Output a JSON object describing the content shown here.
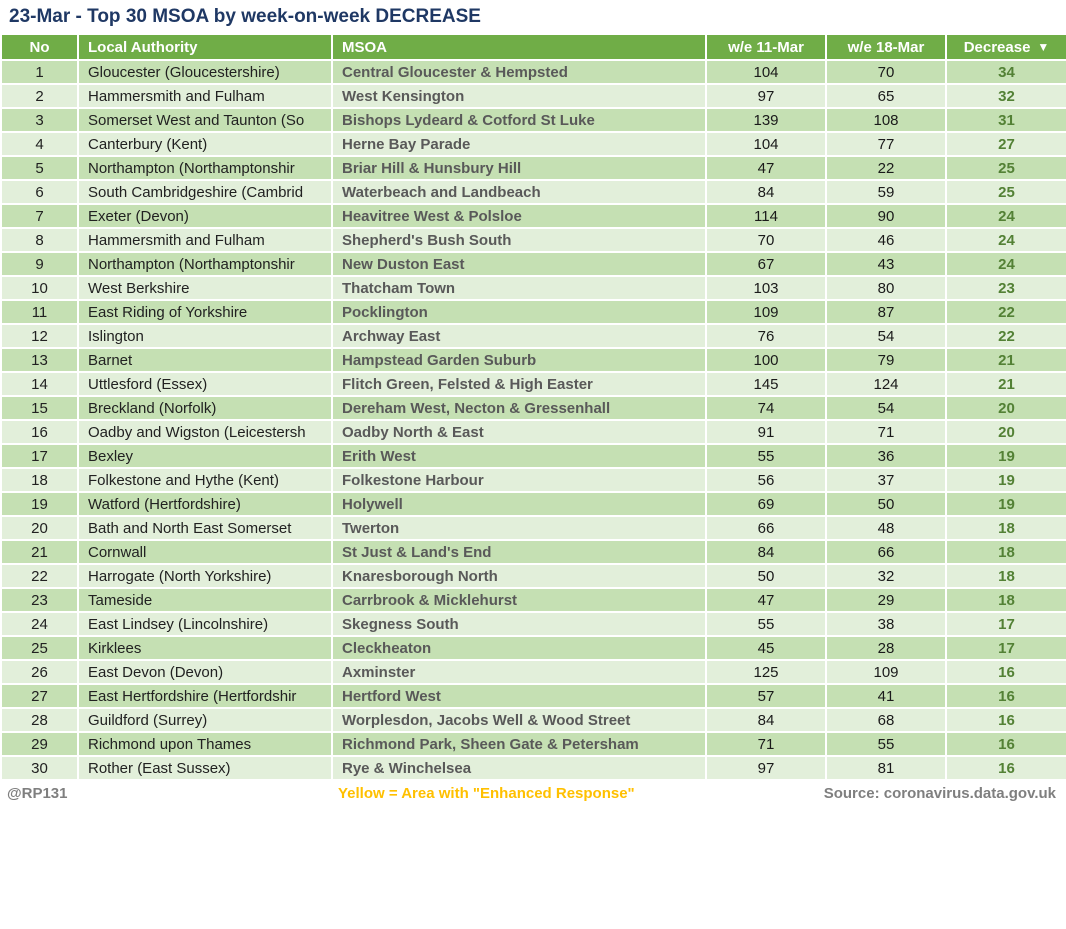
{
  "title": "23-Mar - Top 30 MSOA by week-on-week DECREASE",
  "chart_data": {
    "type": "table",
    "title": "23-Mar - Top 30 MSOA by week-on-week DECREASE",
    "columns": [
      "No",
      "Local Authority",
      "MSOA",
      "w/e 11-Mar",
      "w/e 18-Mar",
      "Decrease"
    ],
    "sort_indicator": "▼",
    "sorted_by": "Decrease",
    "sort_order": "descending",
    "rows": [
      {
        "no": 1,
        "la": "Gloucester (Gloucestershire)",
        "msoa": "Central Gloucester & Hempsted",
        "we11": 104,
        "we18": 70,
        "dec": 34
      },
      {
        "no": 2,
        "la": "Hammersmith and Fulham",
        "msoa": "West Kensington",
        "we11": 97,
        "we18": 65,
        "dec": 32
      },
      {
        "no": 3,
        "la": "Somerset West and Taunton (So",
        "msoa": "Bishops Lydeard & Cotford St Luke",
        "we11": 139,
        "we18": 108,
        "dec": 31
      },
      {
        "no": 4,
        "la": "Canterbury (Kent)",
        "msoa": "Herne Bay Parade",
        "we11": 104,
        "we18": 77,
        "dec": 27
      },
      {
        "no": 5,
        "la": "Northampton (Northamptonshir",
        "msoa": "Briar Hill & Hunsbury Hill",
        "we11": 47,
        "we18": 22,
        "dec": 25
      },
      {
        "no": 6,
        "la": "South Cambridgeshire (Cambrid",
        "msoa": "Waterbeach and Landbeach",
        "we11": 84,
        "we18": 59,
        "dec": 25
      },
      {
        "no": 7,
        "la": "Exeter (Devon)",
        "msoa": "Heavitree West & Polsloe",
        "we11": 114,
        "we18": 90,
        "dec": 24
      },
      {
        "no": 8,
        "la": "Hammersmith and Fulham",
        "msoa": "Shepherd's Bush South",
        "we11": 70,
        "we18": 46,
        "dec": 24
      },
      {
        "no": 9,
        "la": "Northampton (Northamptonshir",
        "msoa": "New Duston East",
        "we11": 67,
        "we18": 43,
        "dec": 24
      },
      {
        "no": 10,
        "la": "West Berkshire",
        "msoa": "Thatcham Town",
        "we11": 103,
        "we18": 80,
        "dec": 23
      },
      {
        "no": 11,
        "la": "East Riding of Yorkshire",
        "msoa": "Pocklington",
        "we11": 109,
        "we18": 87,
        "dec": 22
      },
      {
        "no": 12,
        "la": "Islington",
        "msoa": "Archway East",
        "we11": 76,
        "we18": 54,
        "dec": 22
      },
      {
        "no": 13,
        "la": "Barnet",
        "msoa": "Hampstead Garden Suburb",
        "we11": 100,
        "we18": 79,
        "dec": 21
      },
      {
        "no": 14,
        "la": "Uttlesford (Essex)",
        "msoa": "Flitch Green, Felsted & High Easter",
        "we11": 145,
        "we18": 124,
        "dec": 21
      },
      {
        "no": 15,
        "la": "Breckland (Norfolk)",
        "msoa": "Dereham West, Necton & Gressenhall",
        "we11": 74,
        "we18": 54,
        "dec": 20
      },
      {
        "no": 16,
        "la": "Oadby and Wigston (Leicestersh",
        "msoa": "Oadby North & East",
        "we11": 91,
        "we18": 71,
        "dec": 20
      },
      {
        "no": 17,
        "la": "Bexley",
        "msoa": "Erith West",
        "we11": 55,
        "we18": 36,
        "dec": 19
      },
      {
        "no": 18,
        "la": "Folkestone and Hythe (Kent)",
        "msoa": "Folkestone Harbour",
        "we11": 56,
        "we18": 37,
        "dec": 19
      },
      {
        "no": 19,
        "la": "Watford (Hertfordshire)",
        "msoa": "Holywell",
        "we11": 69,
        "we18": 50,
        "dec": 19
      },
      {
        "no": 20,
        "la": "Bath and North East Somerset",
        "msoa": "Twerton",
        "we11": 66,
        "we18": 48,
        "dec": 18
      },
      {
        "no": 21,
        "la": "Cornwall",
        "msoa": "St Just & Land's End",
        "we11": 84,
        "we18": 66,
        "dec": 18
      },
      {
        "no": 22,
        "la": "Harrogate (North Yorkshire)",
        "msoa": "Knaresborough North",
        "we11": 50,
        "we18": 32,
        "dec": 18
      },
      {
        "no": 23,
        "la": "Tameside",
        "msoa": "Carrbrook & Micklehurst",
        "we11": 47,
        "we18": 29,
        "dec": 18
      },
      {
        "no": 24,
        "la": "East Lindsey (Lincolnshire)",
        "msoa": "Skegness South",
        "we11": 55,
        "we18": 38,
        "dec": 17
      },
      {
        "no": 25,
        "la": "Kirklees",
        "msoa": "Cleckheaton",
        "we11": 45,
        "we18": 28,
        "dec": 17
      },
      {
        "no": 26,
        "la": "East Devon (Devon)",
        "msoa": "Axminster",
        "we11": 125,
        "we18": 109,
        "dec": 16
      },
      {
        "no": 27,
        "la": "East Hertfordshire (Hertfordshir",
        "msoa": "Hertford West",
        "we11": 57,
        "we18": 41,
        "dec": 16
      },
      {
        "no": 28,
        "la": "Guildford (Surrey)",
        "msoa": "Worplesdon, Jacobs Well & Wood Street",
        "we11": 84,
        "we18": 68,
        "dec": 16
      },
      {
        "no": 29,
        "la": "Richmond upon Thames",
        "msoa": "Richmond Park, Sheen Gate & Petersham",
        "we11": 71,
        "we18": 55,
        "dec": 16
      },
      {
        "no": 30,
        "la": "Rother (East Sussex)",
        "msoa": "Rye & Winchelsea",
        "we11": 97,
        "we18": 81,
        "dec": 16
      }
    ]
  },
  "footer": {
    "handle": "@RP131",
    "note": "Yellow = Area with \"Enhanced Response\"",
    "source": "Source: coronavirus.data.gov.uk"
  },
  "colors": {
    "header_green": "#70AD47",
    "band_dark": "#C5E0B3",
    "band_light": "#E2EFDA",
    "title_navy": "#1F3864",
    "msoa_text": "#595959",
    "decrease_text": "#538135",
    "footer_gray": "#7F7F7F",
    "note_yellow": "#FFC000"
  }
}
